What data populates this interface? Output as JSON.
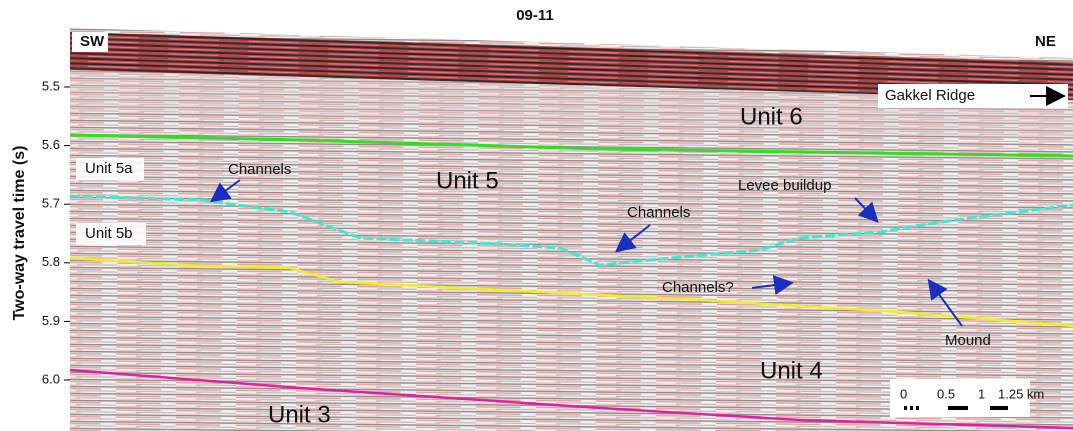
{
  "figure": {
    "title": "09-11",
    "y_axis_label": "Two-way travel time (s)",
    "yticks": [
      5.5,
      5.6,
      5.7,
      5.8,
      5.9,
      {
        "value": 6,
        "label": "6.0"
      }
    ],
    "annotations": {
      "sw": "SW",
      "ne": "NE",
      "gakkel": "Gakkel Ridge",
      "unit6": "Unit 6",
      "unit5a": "Unit 5a",
      "unit5": "Unit 5",
      "unit5b": "Unit 5b",
      "unit4": "Unit 4",
      "unit3": "Unit 3",
      "channels1": "Channels",
      "channels2": "Channels",
      "channels3": "Channels?",
      "levee": "Levee buildup",
      "mound": "Mound"
    },
    "scale_bar": [
      "0",
      "0.5",
      "1",
      "1.25 km"
    ]
  }
}
